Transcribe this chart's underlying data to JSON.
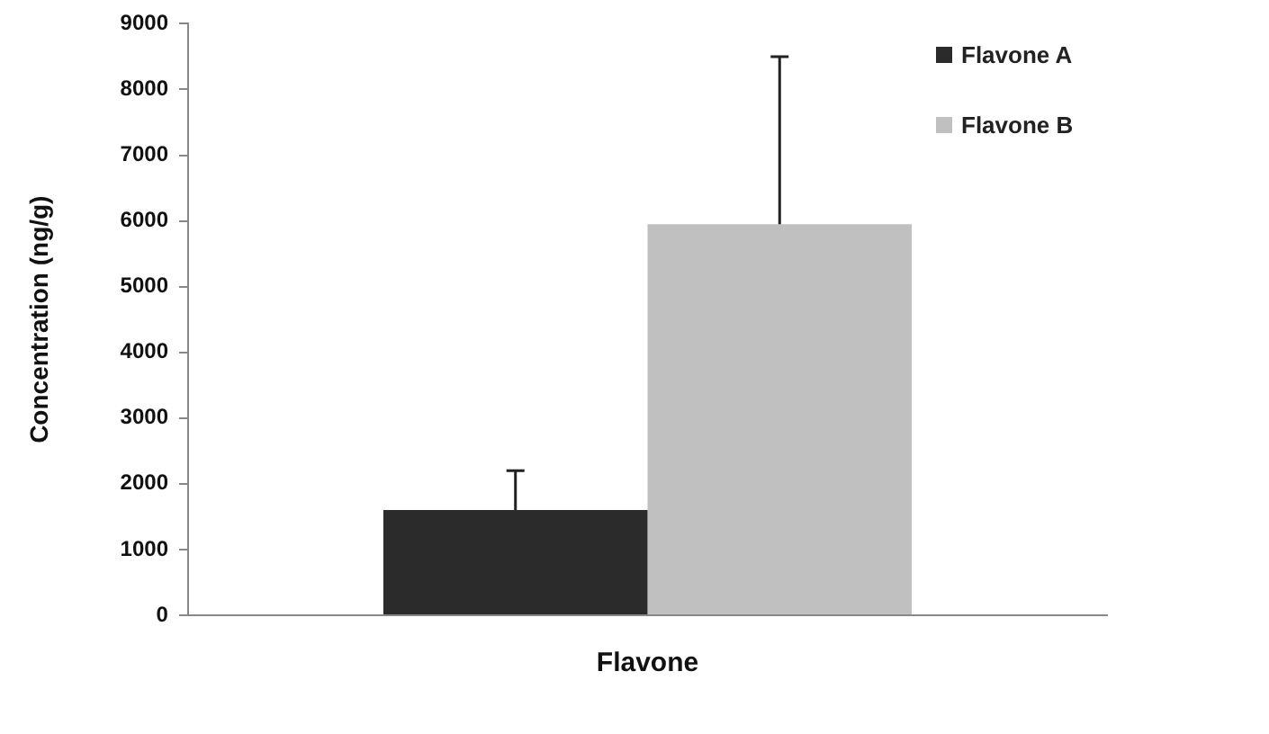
{
  "chart_data": {
    "type": "bar",
    "categories": [
      "Flavone"
    ],
    "ylabel": "Concentration (ng/g)",
    "series": [
      {
        "name": "Flavone A",
        "color": "#2b2b2b",
        "values": [
          1600
        ],
        "errors": [
          [
            1600,
            2200
          ]
        ]
      },
      {
        "name": "Flavone B",
        "color": "#c0c0c0",
        "values": [
          5950
        ],
        "errors": [
          [
            5950,
            8500
          ]
        ]
      }
    ],
    "ylim": [
      0,
      9000
    ],
    "yticks": [
      0,
      1000,
      2000,
      3000,
      4000,
      5000,
      6000,
      7000,
      8000,
      9000
    ],
    "grid": false,
    "legend": "top right"
  }
}
